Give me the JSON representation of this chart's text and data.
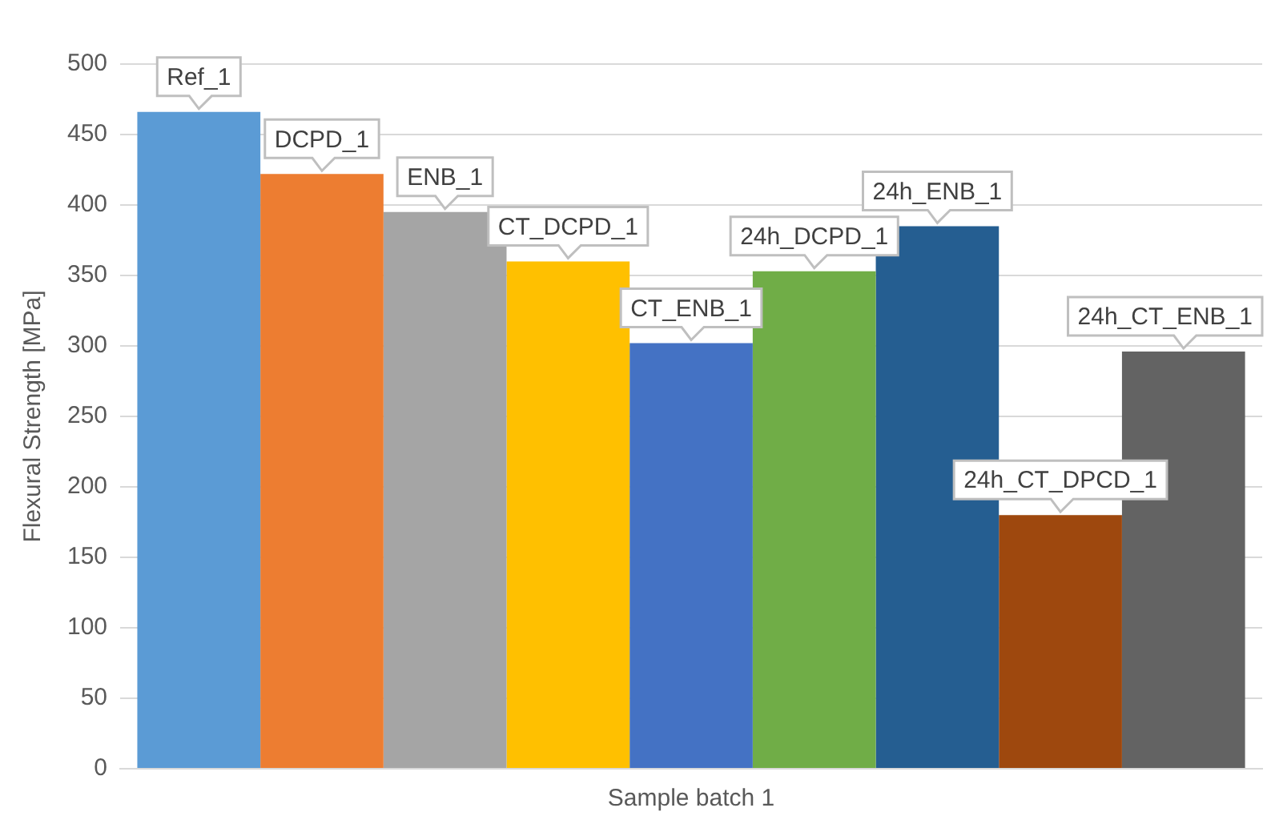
{
  "chart_data": {
    "type": "bar",
    "ylabel": "Flexural Strength [MPa]",
    "categories": [
      "Sample batch 1"
    ],
    "series": [
      {
        "name": "Ref_1",
        "color": "#5b9bd5",
        "values": [
          466
        ]
      },
      {
        "name": "DCPD_1",
        "color": "#ed7d31",
        "values": [
          422
        ]
      },
      {
        "name": "ENB_1",
        "color": "#a5a5a5",
        "values": [
          395
        ]
      },
      {
        "name": "CT_DCPD_1",
        "color": "#ffc000",
        "values": [
          360
        ]
      },
      {
        "name": "CT_ENB_1",
        "color": "#4472c4",
        "values": [
          302
        ]
      },
      {
        "name": "24h_DCPD_1",
        "color": "#70ad47",
        "values": [
          353
        ]
      },
      {
        "name": "24h_ENB_1",
        "color": "#255e91",
        "values": [
          385
        ]
      },
      {
        "name": "24h_CT_DPCD_1",
        "color": "#9e480e",
        "values": [
          180
        ]
      },
      {
        "name": "24h_CT_ENB_1",
        "color": "#636363",
        "values": [
          296
        ]
      }
    ],
    "ylim": [
      0,
      500
    ],
    "yticks": [
      0,
      50,
      100,
      150,
      200,
      250,
      300,
      350,
      400,
      450,
      500
    ],
    "grid": "y",
    "legend": false
  }
}
